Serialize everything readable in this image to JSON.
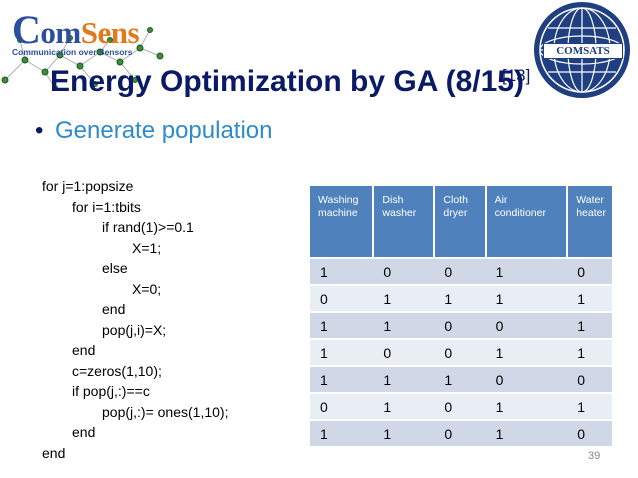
{
  "logo": {
    "brand_c": "C",
    "brand_om": "om",
    "brand_sens": "Sens",
    "tagline": "Communication over Sensors"
  },
  "emblem": {
    "label": "COMSATS"
  },
  "title": "Energy Optimization by GA (8/15)",
  "title_ref": "[13]",
  "bullet": {
    "marker": "•",
    "text": "Generate population"
  },
  "code": [
    "for j=1:popsize",
    "for i=1:tbits",
    "if rand(1)>=0.1",
    "X=1;",
    "else",
    "X=0;",
    "end",
    "pop(j,i)=X;",
    "end",
    "c=zeros(1,10);",
    "if pop(j,:)==c",
    "pop(j,:)= ones(1,10);",
    "end",
    "end"
  ],
  "table": {
    "headers": [
      "Washing machine",
      "Dish washer",
      "Cloth dryer",
      "Air conditioner",
      "Water heater"
    ],
    "rows": [
      [
        "1",
        "0",
        "0",
        "1",
        "0"
      ],
      [
        "0",
        "1",
        "1",
        "1",
        "1"
      ],
      [
        "1",
        "1",
        "0",
        "0",
        "1"
      ],
      [
        "1",
        "0",
        "0",
        "1",
        "1"
      ],
      [
        "1",
        "1",
        "1",
        "0",
        "0"
      ],
      [
        "0",
        "1",
        "0",
        "1",
        "1"
      ],
      [
        "1",
        "1",
        "0",
        "1",
        "0"
      ]
    ]
  },
  "page_number": "39",
  "colors": {
    "title": "#0b1a66",
    "bullet_text": "#2e8bc9",
    "table_header": "#4f81bd",
    "row_odd": "#d0d8e8",
    "row_even": "#e9edf4"
  }
}
